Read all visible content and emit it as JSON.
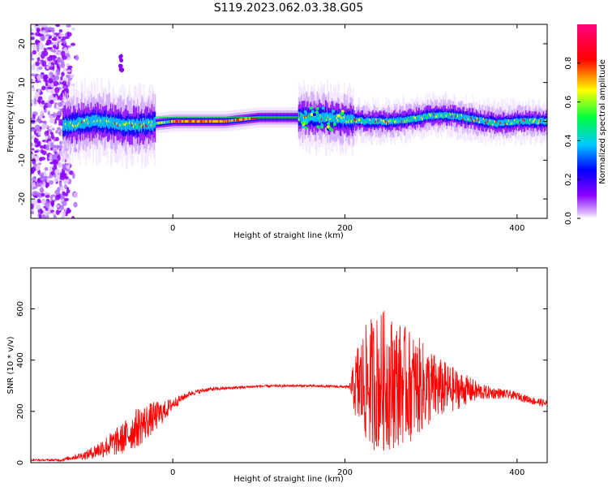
{
  "figure": {
    "title": "S119.2023.062.03.38.G05"
  },
  "chart_data": [
    {
      "type": "heatmap",
      "title": "",
      "xlabel": "Height of straight line (km)",
      "ylabel": "Frequency (Hz)",
      "xlim": [
        -165,
        435
      ],
      "ylim": [
        -25,
        25
      ],
      "xticks": [
        "0",
        "200",
        "400"
      ],
      "xtick_values": [
        0,
        200,
        400
      ],
      "yticks": [
        "-20",
        "-10",
        "0",
        "10",
        "20"
      ],
      "ytick_values": [
        -20,
        -10,
        0,
        10,
        20
      ],
      "colorbar": {
        "label": "Normalized spectral amplitude",
        "range": [
          0,
          1
        ],
        "ticks": [
          "0.0",
          "0.2",
          "0.4",
          "0.6",
          "0.8"
        ],
        "tick_values": [
          0.0,
          0.2,
          0.4,
          0.6,
          0.8
        ],
        "colormap": [
          "#ffffff",
          "#8a00ff",
          "#0000ff",
          "#00c8ff",
          "#00ff00",
          "#ffff00",
          "#ff0000",
          "#ff0080"
        ]
      },
      "center_track": {
        "x": [
          -120,
          -100,
          -80,
          -60,
          -40,
          -20,
          0,
          20,
          40,
          60,
          80,
          100,
          120,
          150,
          175,
          200,
          225,
          250,
          275,
          300,
          325,
          350,
          375,
          400,
          435
        ],
        "y": [
          -1,
          0,
          0,
          -1,
          -1,
          -0.5,
          0,
          0,
          0,
          0,
          0.5,
          1,
          1,
          1,
          1,
          0.5,
          0,
          0,
          0.5,
          1.5,
          1.5,
          0.5,
          -0.5,
          0,
          0
        ]
      },
      "grid": false
    },
    {
      "type": "line",
      "title": "",
      "xlabel": "Height of straight line (km)",
      "ylabel": "SNR (10 * v/v)",
      "xlim": [
        -165,
        435
      ],
      "ylim": [
        0,
        760
      ],
      "xticks": [
        "0",
        "200",
        "400"
      ],
      "xtick_values": [
        0,
        200,
        400
      ],
      "yticks": [
        "0",
        "200",
        "400",
        "600"
      ],
      "ytick_values": [
        0,
        200,
        400,
        600
      ],
      "series": [
        {
          "color": "#ff0000",
          "x": [
            -165,
            -130,
            -110,
            -100,
            -80,
            -60,
            -40,
            -30,
            -20,
            -10,
            0,
            10,
            20,
            40,
            60,
            100,
            140,
            180,
            205,
            215,
            230,
            245,
            260,
            275,
            290,
            310,
            330,
            340,
            360,
            380,
            400,
            420,
            435
          ],
          "y": [
            10,
            10,
            25,
            30,
            60,
            90,
            140,
            160,
            180,
            200,
            230,
            250,
            270,
            285,
            290,
            298,
            300,
            298,
            295,
            300,
            310,
            320,
            310,
            300,
            295,
            290,
            285,
            285,
            275,
            270,
            260,
            240,
            230
          ],
          "spread": [
            3,
            5,
            12,
            18,
            40,
            60,
            80,
            70,
            60,
            40,
            25,
            15,
            10,
            8,
            6,
            5,
            5,
            5,
            5,
            180,
            260,
            280,
            250,
            220,
            180,
            120,
            80,
            60,
            30,
            20,
            15,
            15,
            15
          ]
        }
      ],
      "grid": false
    }
  ]
}
